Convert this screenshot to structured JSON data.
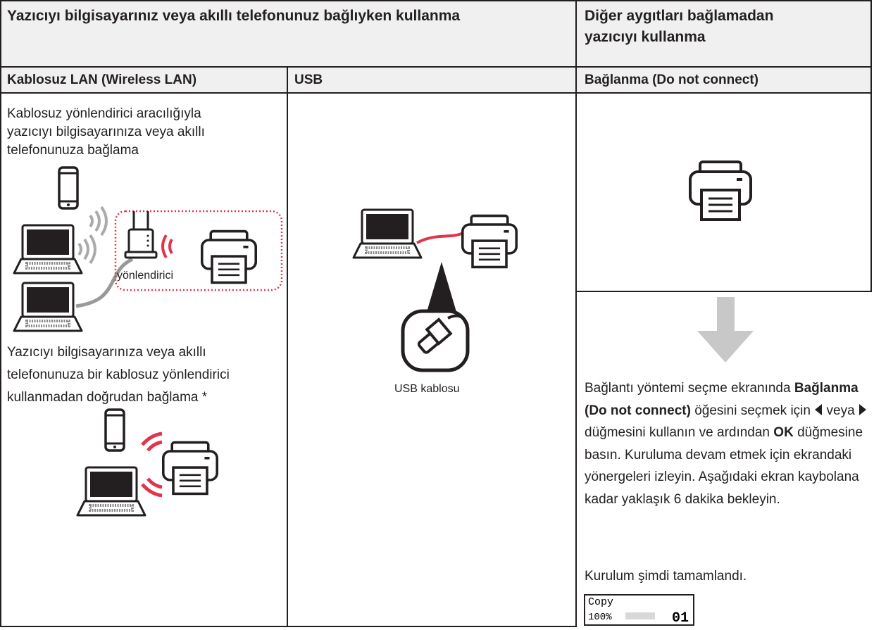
{
  "header": {
    "title_left": "Yazıcıyı bilgisayarınız veya akıllı telefonunuz bağlıyken kullanma",
    "title_right": "Diğer aygıtları bağlamadan yazıcıyı kullanma"
  },
  "columns": [
    {
      "label": "Kablosuz LAN (Wireless LAN)"
    },
    {
      "label": "USB"
    },
    {
      "label": "Bağlanma (Do not connect)"
    }
  ],
  "wireless": {
    "router_method": "Kablosuz yönlendirici aracılığıyla yazıcıyı bilgisayarınıza veya akıllı telefonunuza bağlama",
    "router_label": "yönlendirici",
    "direct_method": "Yazıcıyı bilgisayarınıza veya akıllı telefonunuza bir kablosuz yönlendirici kullanmadan doğrudan bağlama *"
  },
  "usb": {
    "cable_label": "USB kablosu"
  },
  "no_connect": {
    "instructions": [
      "Bağlantı yöntemi seçme ekranında ",
      "Bağlanma (Do not connect)",
      " öğesini seçmek için ",
      " veya ",
      " düğmesini kullanın ve ardından ",
      "OK",
      " düğmesine basın. Kuruluma devam etmek için ekrandaki yönergeleri izleyin. Aşağıdaki ekran kaybolana kadar yaklaşık 6 dakika bekleyin."
    ],
    "completion": "Kurulum şimdi tamamlandı.",
    "screen": {
      "mode": "Copy",
      "zoom": "100%",
      "copies": "01"
    }
  }
}
